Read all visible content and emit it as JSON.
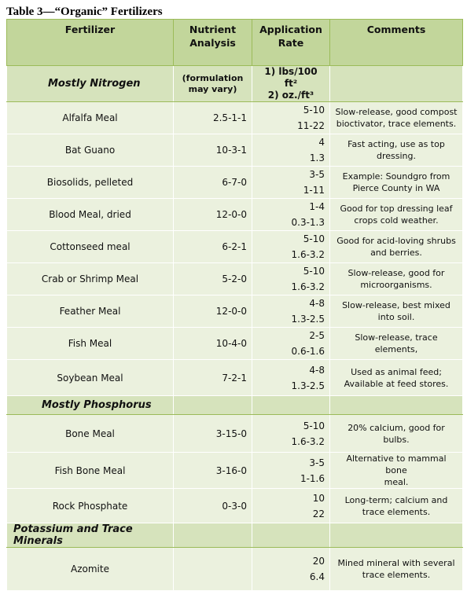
{
  "title": "Table 3—“Organic” Fertilizers",
  "headers": {
    "fertilizer": "Fertilizer",
    "nutrient": [
      "Nutrient",
      "Analysis"
    ],
    "rate": [
      "Application",
      "Rate"
    ],
    "comments": "Comments"
  },
  "sections": [
    {
      "name": "Mostly Nitrogen",
      "note": [
        "(formulation",
        "may vary)"
      ],
      "rate_units": [
        "1) lbs/100 ft²",
        "2) oz./ft³"
      ],
      "rows": [
        {
          "name": "Alfalfa Meal",
          "npk": "2.5-1-1",
          "rate1": "5-10",
          "rate2": "11-22",
          "comment": [
            "Slow-release, good compost",
            "bioctivator, trace elements."
          ]
        },
        {
          "name": "Bat Guano",
          "npk": "10-3-1",
          "rate1": "4",
          "rate2": "1.3",
          "comment": [
            "Fast acting, use as top",
            "dressing."
          ]
        },
        {
          "name": "Biosolids, pelleted",
          "npk": "6-7-0",
          "rate1": "3-5",
          "rate2": "1-11",
          "comment": [
            "Example: Soundgro from",
            "Pierce County in WA"
          ]
        },
        {
          "name": "Blood Meal, dried",
          "npk": "12-0-0",
          "rate1": "1-4",
          "rate2": "0.3-1.3",
          "comment": [
            "Good for top dressing leaf",
            "crops cold weather."
          ]
        },
        {
          "name": "Cottonseed meal",
          "npk": "6-2-1",
          "rate1": "5-10",
          "rate2": "1.6-3.2",
          "comment": [
            "Good for acid-loving shrubs",
            "and berries."
          ]
        },
        {
          "name": "Crab or Shrimp Meal",
          "npk": "5-2-0",
          "rate1": "5-10",
          "rate2": "1.6-3.2",
          "comment": [
            "Slow-release, good for",
            "microorganisms."
          ]
        },
        {
          "name": "Feather Meal",
          "npk": "12-0-0",
          "rate1": "4-8",
          "rate2": "1.3-2.5",
          "comment": [
            "Slow-release, best mixed",
            "into soil."
          ]
        },
        {
          "name": "Fish Meal",
          "npk": "10-4-0",
          "rate1": "2-5",
          "rate2": "0.6-1.6",
          "comment": [
            "Slow-release, trace",
            "elements,"
          ]
        },
        {
          "name": "Soybean Meal",
          "npk": "7-2-1",
          "rate1": "4-8",
          "rate2": "1.3-2.5",
          "comment": [
            "Used as animal feed;",
            "Available at feed stores."
          ]
        }
      ]
    },
    {
      "name": "Mostly Phosphorus",
      "rows": [
        {
          "name": "Bone Meal",
          "npk": "3-15-0",
          "rate1": "5-10",
          "rate2": "1.6-3.2",
          "comment": [
            "20% calcium, good for",
            "bulbs."
          ]
        },
        {
          "name": "Fish Bone Meal",
          "npk": "3-16-0",
          "rate1": "3-5",
          "rate2": "1-1.6",
          "comment": [
            "Alternative to mammal bone",
            "meal."
          ]
        },
        {
          "name": "Rock Phosphate",
          "npk": "0-3-0",
          "rate1": "10",
          "rate2": "22",
          "comment": [
            "Long-term; calcium and",
            "trace elements."
          ]
        }
      ]
    },
    {
      "name": "Potassium and Trace Minerals",
      "rows": [
        {
          "name": "Azomite",
          "npk": "",
          "rate1": "20",
          "rate2": "6.4",
          "comment": [
            "Mined mineral with several",
            "trace elements."
          ]
        }
      ]
    }
  ]
}
